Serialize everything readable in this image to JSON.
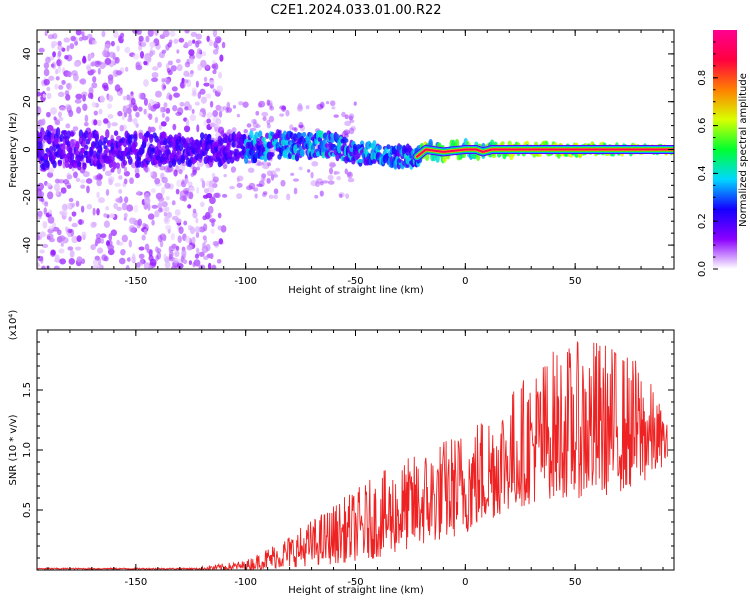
{
  "figure": {
    "title": "C2E1.2024.033.01.00.R22"
  },
  "colorbar": {
    "label": "Normalized spectral amplitude",
    "range": [
      0.0,
      1.0
    ],
    "ticks": [
      "0.0",
      "0.2",
      "0.4",
      "0.6",
      "0.8"
    ],
    "colors": [
      "#ffffff",
      "#8a00ff",
      "#1400ff",
      "#00d8ff",
      "#00ff30",
      "#d8ff00",
      "#ff8000",
      "#ff0040",
      "#ff0090"
    ]
  },
  "chart_data": [
    {
      "type": "heatmap",
      "name": "spectrogram",
      "xlabel": "Height of straight line (km)",
      "ylabel": "Frequency (Hz)",
      "xlim": [
        -195,
        95
      ],
      "ylim": [
        -50,
        50
      ],
      "xticks": [
        "-150",
        "-100",
        "-50",
        "0",
        "50"
      ],
      "yticks": [
        "-40",
        "-20",
        "0",
        "20",
        "40"
      ],
      "description_series": [
        {
          "name": "dominant frequency ridge",
          "x": [
            -195,
            -150,
            -110,
            -90,
            -75,
            -62,
            -50,
            -40,
            -30,
            -22,
            -18,
            -10,
            0,
            5,
            8,
            12,
            20,
            50,
            92
          ],
          "y": [
            0,
            0,
            0,
            1.5,
            1.5,
            2.5,
            -1.5,
            -2,
            -3,
            -3,
            0,
            -1,
            0,
            0,
            -1,
            0,
            0,
            0,
            0
          ]
        }
      ]
    },
    {
      "type": "line",
      "name": "snr",
      "xlabel": "Height of straight line (km)",
      "ylabel": "SNR (10 * v/v)",
      "multiplier": "(x10⁴)",
      "xlim": [
        -195,
        95
      ],
      "ylim": [
        0,
        2.0
      ],
      "xticks": [
        "-150",
        "-100",
        "-50",
        "0",
        "50"
      ],
      "yticks": [
        "0.5",
        "1.0",
        "1.5"
      ],
      "color": "#ee2222",
      "envelope": {
        "x": [
          -195,
          -120,
          -100,
          -80,
          -60,
          -40,
          -20,
          0,
          20,
          40,
          60,
          80,
          92
        ],
        "low": [
          0.0,
          0.0,
          0.0,
          0.02,
          0.05,
          0.1,
          0.2,
          0.3,
          0.5,
          0.6,
          0.6,
          0.7,
          0.9
        ],
        "high": [
          0.02,
          0.03,
          0.08,
          0.3,
          0.55,
          0.8,
          1.0,
          1.2,
          1.5,
          1.85,
          1.95,
          1.75,
          1.25
        ]
      }
    }
  ]
}
